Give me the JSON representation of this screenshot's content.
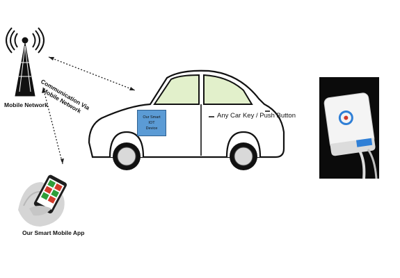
{
  "labels": {
    "mobile_network": "Mobile Network",
    "communication": [
      "Communication Via",
      "Mobile Network"
    ],
    "smart_app": "Our Smart Mobile App",
    "car_key": "Any Car Key / Push Button",
    "iot_device": [
      "Our Smart",
      "IOT",
      "Device"
    ]
  },
  "icons": {
    "tower": "radio-tower-icon",
    "phone": "smartphone-in-hand-icon",
    "car": "sedan-car-icon",
    "device": "iot-hardware-photo"
  },
  "colors": {
    "iot_box": "#5b9bd5",
    "window_tint": "#e2f0cb",
    "device_accent": "#2f7fd6"
  }
}
